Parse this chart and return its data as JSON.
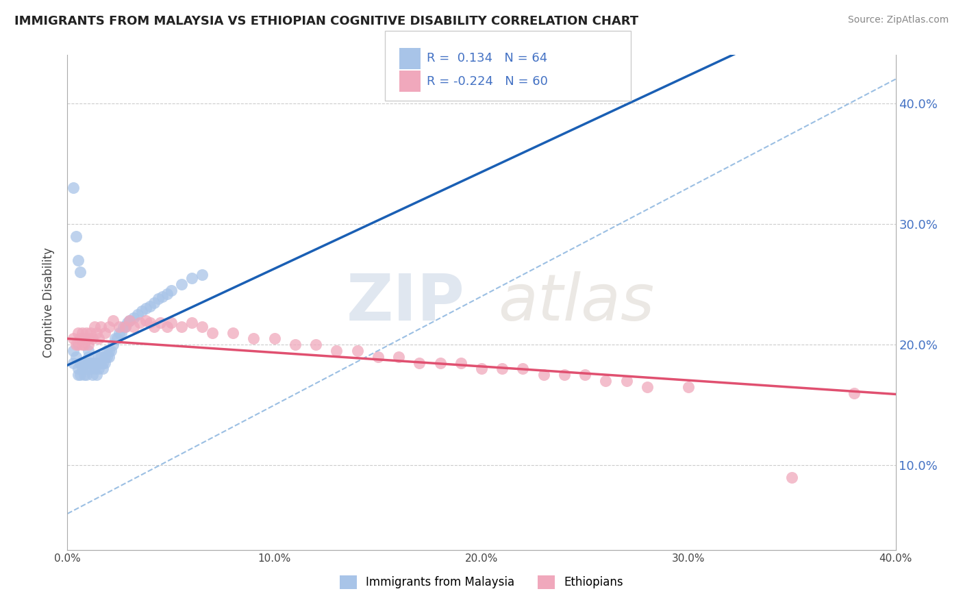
{
  "title": "IMMIGRANTS FROM MALAYSIA VS ETHIOPIAN COGNITIVE DISABILITY CORRELATION CHART",
  "source": "Source: ZipAtlas.com",
  "ylabel": "Cognitive Disability",
  "r1": 0.134,
  "n1": 64,
  "r2": -0.224,
  "n2": 60,
  "color_malaysia": "#a8c4e8",
  "color_ethiopian": "#f0a8bc",
  "line_color_malaysia": "#1a5fb4",
  "line_color_ethiopian": "#e05070",
  "dash_line_color": "#90b8e0",
  "background_color": "#ffffff",
  "ytick_labels": [
    "10.0%",
    "20.0%",
    "30.0%",
    "40.0%"
  ],
  "ytick_values": [
    0.1,
    0.2,
    0.3,
    0.4
  ],
  "xlim": [
    0.0,
    0.4
  ],
  "ylim": [
    0.03,
    0.44
  ],
  "malaysia_points_x": [
    0.003,
    0.003,
    0.004,
    0.005,
    0.005,
    0.006,
    0.006,
    0.007,
    0.007,
    0.008,
    0.008,
    0.009,
    0.009,
    0.01,
    0.01,
    0.01,
    0.011,
    0.011,
    0.012,
    0.012,
    0.013,
    0.013,
    0.014,
    0.014,
    0.015,
    0.015,
    0.015,
    0.016,
    0.016,
    0.017,
    0.017,
    0.018,
    0.018,
    0.019,
    0.019,
    0.02,
    0.02,
    0.021,
    0.022,
    0.023,
    0.024,
    0.025,
    0.026,
    0.027,
    0.028,
    0.029,
    0.03,
    0.032,
    0.034,
    0.036,
    0.038,
    0.04,
    0.042,
    0.044,
    0.046,
    0.048,
    0.05,
    0.055,
    0.06,
    0.065,
    0.003,
    0.004,
    0.005,
    0.006
  ],
  "malaysia_points_y": [
    0.195,
    0.185,
    0.19,
    0.18,
    0.175,
    0.185,
    0.175,
    0.185,
    0.18,
    0.185,
    0.175,
    0.18,
    0.175,
    0.195,
    0.19,
    0.185,
    0.185,
    0.18,
    0.185,
    0.175,
    0.185,
    0.18,
    0.185,
    0.175,
    0.19,
    0.185,
    0.18,
    0.19,
    0.185,
    0.185,
    0.18,
    0.19,
    0.185,
    0.195,
    0.19,
    0.195,
    0.19,
    0.195,
    0.2,
    0.205,
    0.205,
    0.21,
    0.21,
    0.215,
    0.215,
    0.218,
    0.22,
    0.222,
    0.225,
    0.228,
    0.23,
    0.232,
    0.235,
    0.238,
    0.24,
    0.242,
    0.245,
    0.25,
    0.255,
    0.258,
    0.33,
    0.29,
    0.27,
    0.26
  ],
  "ethiopian_points_x": [
    0.003,
    0.004,
    0.005,
    0.005,
    0.006,
    0.007,
    0.007,
    0.008,
    0.008,
    0.009,
    0.01,
    0.01,
    0.011,
    0.012,
    0.013,
    0.014,
    0.015,
    0.016,
    0.018,
    0.02,
    0.022,
    0.025,
    0.028,
    0.03,
    0.032,
    0.035,
    0.038,
    0.04,
    0.042,
    0.045,
    0.048,
    0.05,
    0.055,
    0.06,
    0.065,
    0.07,
    0.08,
    0.09,
    0.1,
    0.11,
    0.12,
    0.13,
    0.14,
    0.15,
    0.16,
    0.17,
    0.18,
    0.19,
    0.2,
    0.21,
    0.22,
    0.23,
    0.24,
    0.25,
    0.26,
    0.27,
    0.28,
    0.3,
    0.35,
    0.38
  ],
  "ethiopian_points_y": [
    0.205,
    0.2,
    0.21,
    0.2,
    0.205,
    0.2,
    0.21,
    0.205,
    0.2,
    0.21,
    0.205,
    0.2,
    0.21,
    0.205,
    0.215,
    0.21,
    0.205,
    0.215,
    0.21,
    0.215,
    0.22,
    0.215,
    0.215,
    0.22,
    0.215,
    0.218,
    0.22,
    0.218,
    0.215,
    0.218,
    0.215,
    0.218,
    0.215,
    0.218,
    0.215,
    0.21,
    0.21,
    0.205,
    0.205,
    0.2,
    0.2,
    0.195,
    0.195,
    0.19,
    0.19,
    0.185,
    0.185,
    0.185,
    0.18,
    0.18,
    0.18,
    0.175,
    0.175,
    0.175,
    0.17,
    0.17,
    0.165,
    0.165,
    0.09,
    0.16
  ]
}
